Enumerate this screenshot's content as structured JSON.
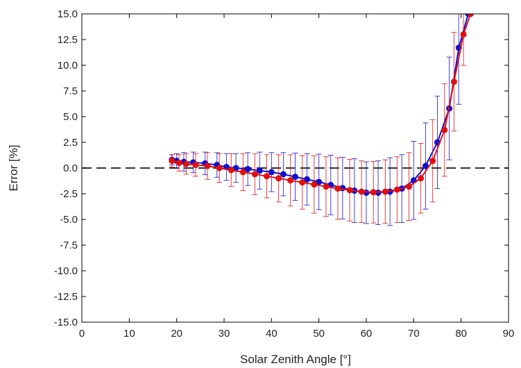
{
  "chart_data": {
    "type": "line",
    "title": "",
    "xlabel": "Solar Zenith Angle [°]",
    "ylabel": "Error [%]",
    "xlim": [
      0,
      90
    ],
    "ylim": [
      -15.0,
      15.0
    ],
    "xticks": [
      0,
      10,
      20,
      30,
      40,
      50,
      60,
      70,
      80,
      90
    ],
    "yticks": [
      15.0,
      12.5,
      10.0,
      7.5,
      5.0,
      2.5,
      0.0,
      -2.5,
      -5.0,
      -7.5,
      -10.0,
      -12.5,
      -15.0
    ],
    "ytick_labels": [
      "15.0",
      "12.5",
      "10.0",
      "7.5",
      "5.0",
      "2.5",
      "0.0",
      "-2.5",
      "-5.0",
      "-7.5",
      "-10.0",
      "-12.5",
      "-15.0"
    ],
    "grid": false,
    "reference_line": {
      "y": 0,
      "style": "dashed",
      "color": "#333333"
    },
    "series": [
      {
        "color": "#1010d0",
        "x": [
          19,
          20,
          21.5,
          23.5,
          26,
          28.5,
          30.5,
          32.5,
          35,
          37.5,
          40,
          42.5,
          45,
          47.5,
          50,
          52.5,
          55,
          57.5,
          60,
          62.5,
          65,
          67.5,
          70,
          72.5,
          75,
          77.5,
          79.5,
          81.5,
          82
        ],
        "y": [
          0.8,
          0.7,
          0.6,
          0.55,
          0.45,
          0.3,
          0.1,
          0.0,
          -0.1,
          -0.25,
          -0.4,
          -0.6,
          -0.85,
          -1.1,
          -1.35,
          -1.65,
          -1.95,
          -2.2,
          -2.4,
          -2.4,
          -2.3,
          -2.0,
          -1.2,
          0.2,
          2.5,
          5.8,
          11.7,
          15.0,
          15.0
        ],
        "err": [
          0.5,
          0.7,
          0.9,
          1.0,
          1.1,
          1.2,
          1.3,
          1.4,
          1.6,
          1.8,
          1.9,
          2.1,
          2.3,
          2.5,
          2.7,
          2.9,
          3.0,
          3.1,
          3.0,
          3.1,
          3.3,
          3.3,
          3.8,
          4.2,
          4.5,
          5.0,
          5.5,
          0,
          0
        ]
      },
      {
        "color": "#e01010",
        "x": [
          19,
          20.5,
          22,
          24,
          26.5,
          29,
          31.5,
          34,
          36.5,
          39,
          41.5,
          44,
          46.5,
          49,
          51.5,
          54,
          56.5,
          59,
          61.5,
          64,
          66.5,
          69,
          71.5,
          74,
          76.5,
          78.5,
          80.5,
          82
        ],
        "y": [
          0.7,
          0.5,
          0.4,
          0.3,
          0.2,
          0.0,
          -0.2,
          -0.4,
          -0.6,
          -0.8,
          -1.0,
          -1.2,
          -1.4,
          -1.6,
          -1.8,
          -2.0,
          -2.15,
          -2.3,
          -2.35,
          -2.3,
          -2.1,
          -1.8,
          -1.0,
          0.7,
          3.7,
          8.4,
          13.0,
          15.0
        ],
        "err": [
          0.6,
          0.8,
          1.0,
          1.1,
          1.3,
          1.4,
          1.6,
          1.8,
          2.0,
          2.1,
          2.3,
          2.5,
          2.6,
          2.8,
          2.9,
          3.0,
          3.0,
          3.0,
          3.0,
          3.1,
          3.2,
          3.3,
          3.4,
          4.0,
          4.5,
          4.8,
          3.0,
          0
        ]
      }
    ]
  }
}
